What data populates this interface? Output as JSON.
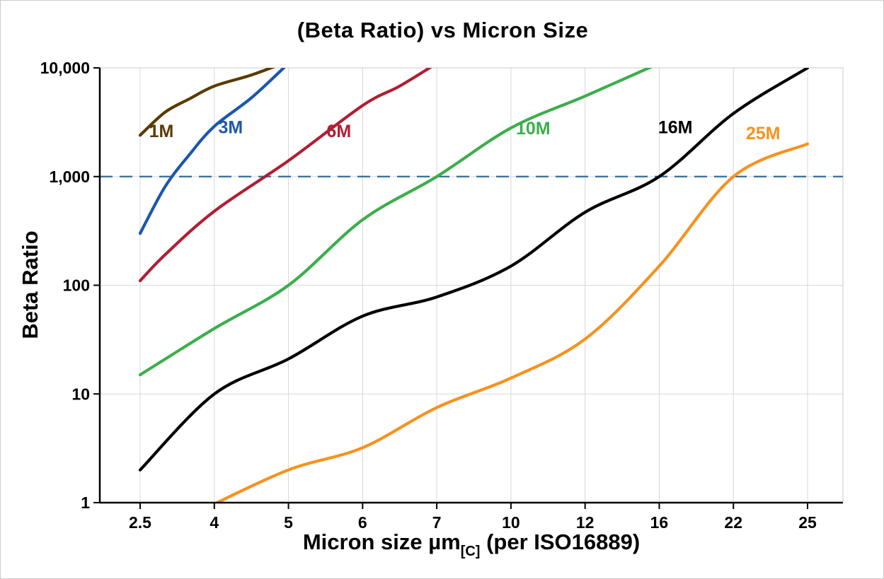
{
  "title": "(Beta Ratio) vs Micron Size",
  "axes": {
    "y_label": "Beta Ratio",
    "x_label_main": "Micron size µm",
    "x_label_sub": "[C]",
    "x_label_rest": " (per ISO16889)"
  },
  "chart_data": {
    "type": "line",
    "title": "(Beta Ratio) vs Micron Size",
    "xlabel": "Micron size µm[C] (per ISO16889)",
    "ylabel": "Beta Ratio",
    "y_scale": "log",
    "ylim": [
      1,
      10000
    ],
    "grid": true,
    "legend_position": "inline-labels",
    "y_ticks": [
      1,
      10,
      100,
      1000,
      10000
    ],
    "y_tick_labels": [
      "1",
      "10",
      "100",
      "1,000",
      "10,000"
    ],
    "x_ticks": [
      2.5,
      4,
      5,
      6,
      7,
      10,
      12,
      16,
      22,
      25
    ],
    "x_tick_labels": [
      "2.5",
      "4",
      "5",
      "6",
      "7",
      "10",
      "12",
      "16",
      "22",
      "25"
    ],
    "ref_line": {
      "y": 1000,
      "color": "#2e6da0",
      "style": "dashed"
    },
    "grid_color": "#d8d8d8",
    "series": [
      {
        "name": "1M",
        "color": "#5b3a00",
        "label_pos": {
          "x": 2.93,
          "y": 2300
        },
        "points": [
          [
            2.5,
            2400
          ],
          [
            3,
            3900
          ],
          [
            3.5,
            5200
          ],
          [
            4,
            6800
          ],
          [
            4.5,
            8600
          ],
          [
            5,
            11500
          ]
        ]
      },
      {
        "name": "3M",
        "color": "#1b57ae",
        "label_pos": {
          "x": 4.22,
          "y": 2500
        },
        "points": [
          [
            2.5,
            300
          ],
          [
            3,
            800
          ],
          [
            3.5,
            1600
          ],
          [
            4,
            2900
          ],
          [
            4.5,
            5300
          ],
          [
            5,
            11000
          ]
        ]
      },
      {
        "name": "6M",
        "color": "#b01e32",
        "label_pos": {
          "x": 5.68,
          "y": 2300
        },
        "points": [
          [
            2.5,
            110
          ],
          [
            3,
            190
          ],
          [
            4,
            480
          ],
          [
            5,
            1400
          ],
          [
            6,
            4500
          ],
          [
            6.5,
            6800
          ],
          [
            7,
            11000
          ]
        ]
      },
      {
        "name": "10M",
        "color": "#3cae4c",
        "label_pos": {
          "x": 10.6,
          "y": 2450
        },
        "points": [
          [
            2.5,
            15
          ],
          [
            4,
            40
          ],
          [
            5,
            100
          ],
          [
            6,
            400
          ],
          [
            7,
            1000
          ],
          [
            10,
            2800
          ],
          [
            12,
            5500
          ],
          [
            16,
            11000
          ]
        ]
      },
      {
        "name": "16M",
        "color": "#000000",
        "label_pos": {
          "x": 17.3,
          "y": 2500
        },
        "points": [
          [
            2.5,
            2
          ],
          [
            4,
            10
          ],
          [
            5,
            21
          ],
          [
            6,
            52
          ],
          [
            7,
            78
          ],
          [
            10,
            150
          ],
          [
            12,
            470
          ],
          [
            16,
            1000
          ],
          [
            22,
            3800
          ],
          [
            25,
            10000
          ]
        ]
      },
      {
        "name": "25M",
        "color": "#f6921e",
        "label_pos": {
          "x": 23.2,
          "y": 2200
        },
        "points": [
          [
            3.85,
            0.9
          ],
          [
            5,
            2
          ],
          [
            6,
            3.2
          ],
          [
            7,
            7.5
          ],
          [
            10,
            14
          ],
          [
            12,
            32
          ],
          [
            16,
            150
          ],
          [
            22,
            1000
          ],
          [
            25,
            2000
          ]
        ]
      }
    ]
  }
}
